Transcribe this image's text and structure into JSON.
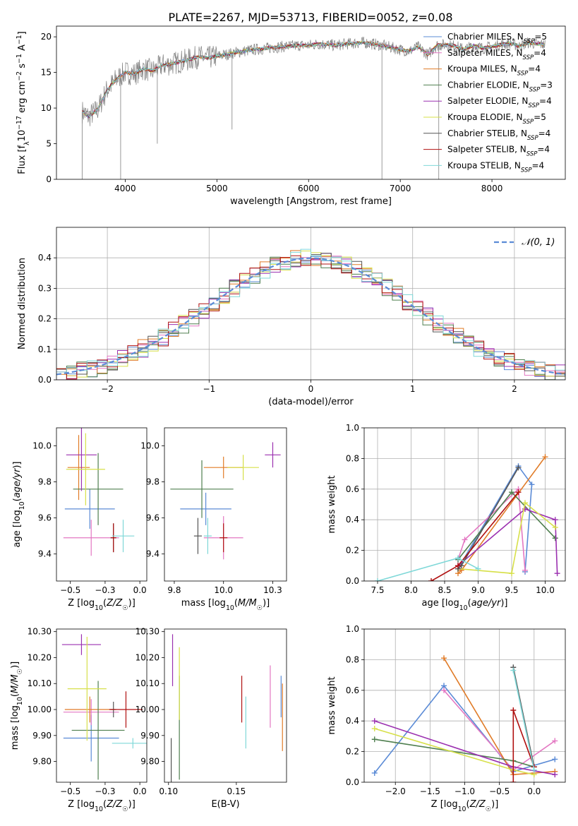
{
  "figure": {
    "title": "PLATE=2267, MJD=53713, FIBERID=0052, z=0.08",
    "colors": {
      "Chabrier MILES": "#5b8bd6",
      "Salpeter MILES": "#e377c2",
      "Kroupa MILES": "#e07b27",
      "Chabrier ELODIE": "#4f7f4f",
      "Salpeter ELODIE": "#9b30b0",
      "Kroupa ELODIE": "#d7e04a",
      "Chabrier STELIB": "#555555",
      "Salpeter STELIB": "#b01010",
      "Kroupa STELIB": "#7fd8d8",
      "data": "#808080"
    }
  },
  "chart_data": [
    {
      "id": "spectrum",
      "type": "line",
      "xlabel": "wavelength [Angstrom, rest frame]",
      "ylabel": "Flux [f_λ10^-17 erg cm^-2 s^-1 A^-1]",
      "xlim": [
        3250,
        8800
      ],
      "ylim": [
        0,
        21.5
      ],
      "xticks": [
        4000,
        5000,
        6000,
        7000,
        8000
      ],
      "yticks": [
        0,
        5,
        10,
        15,
        20
      ],
      "grid": false,
      "legend": "right",
      "legend_entries": [
        {
          "model": "Chabrier MILES",
          "n_ssp": 5
        },
        {
          "model": "Salpeter MILES",
          "n_ssp": 4
        },
        {
          "model": "Kroupa MILES",
          "n_ssp": 4
        },
        {
          "model": "Chabrier ELODIE",
          "n_ssp": 3
        },
        {
          "model": "Salpeter ELODIE",
          "n_ssp": 4
        },
        {
          "model": "Kroupa ELODIE",
          "n_ssp": 5
        },
        {
          "model": "Chabrier STELIB",
          "n_ssp": 4
        },
        {
          "model": "Salpeter STELIB",
          "n_ssp": 4
        },
        {
          "model": "Kroupa STELIB",
          "n_ssp": 4
        }
      ],
      "data_series": {
        "name": "data",
        "x": [
          3530,
          3600,
          3700,
          3800,
          3900,
          4000,
          4100,
          4200,
          4300,
          4400,
          4500,
          4600,
          4700,
          4800,
          4900,
          5000,
          5100,
          5200,
          5300,
          5400,
          5500,
          5600,
          5700,
          5800,
          5900,
          6000,
          6100,
          6200,
          6300,
          6400,
          6500,
          6600,
          6700,
          6800,
          6900,
          7000,
          7100,
          7200,
          7300,
          7400,
          7500,
          7600,
          7700,
          7800,
          7900,
          8000,
          8100,
          8200,
          8300,
          8400,
          8500,
          8580
        ],
        "y": [
          9.5,
          8.8,
          9.8,
          12.5,
          14.0,
          15.0,
          14.8,
          15.5,
          15.2,
          16.0,
          16.2,
          16.5,
          16.8,
          17.2,
          17.0,
          17.3,
          17.5,
          17.8,
          18.0,
          18.2,
          18.3,
          18.5,
          18.6,
          18.7,
          18.8,
          18.8,
          19.0,
          18.9,
          18.8,
          19.0,
          19.1,
          19.2,
          19.0,
          18.8,
          18.5,
          18.2,
          18.0,
          18.6,
          17.5,
          18.8,
          18.9,
          18.7,
          18.2,
          18.8,
          18.4,
          18.6,
          18.9,
          19.1,
          18.7,
          19.2,
          19.0,
          18.9
        ],
        "noise": 1.2
      },
      "dips": [
        {
          "x": 3530,
          "y": 0
        },
        {
          "x": 3950,
          "y": 0
        },
        {
          "x": 4350,
          "y": 5
        },
        {
          "x": 5165,
          "y": 7
        },
        {
          "x": 6800,
          "y": 0
        },
        {
          "x": 7420,
          "y": 0
        }
      ]
    },
    {
      "id": "residuals",
      "type": "histogram",
      "xlabel": "(data-model)/error",
      "ylabel": "Normed distribution",
      "xlim": [
        -2.5,
        2.5
      ],
      "ylim": [
        0,
        0.5
      ],
      "xticks": [
        -2,
        -1,
        0,
        1,
        2
      ],
      "yticks": [
        0.0,
        0.1,
        0.2,
        0.3,
        0.4
      ],
      "grid": true,
      "legend": "top-right",
      "gaussian_label": "𝒩(0, 1)",
      "bin_width": 0.1,
      "bin_start": -2.5,
      "n_bins": 50,
      "jitter": 0.03
    },
    {
      "id": "age-vs-Z",
      "type": "errorbar",
      "xlabel": "Z [log10(Z/Z☉)]",
      "ylabel": "age  [log10(age/yr)]",
      "xlim": [
        -0.6,
        0.05
      ],
      "ylim": [
        9.25,
        10.1
      ],
      "xticks": [
        -0.5,
        -0.25,
        0.0
      ],
      "yticks": [
        9.4,
        9.6,
        9.8,
        10.0
      ],
      "points": [
        {
          "model": "Chabrier MILES",
          "x": -0.36,
          "y": 9.65,
          "xerr": 0.18,
          "yerr": 0.11
        },
        {
          "model": "Salpeter MILES",
          "x": -0.35,
          "y": 9.49,
          "xerr": 0.2,
          "yerr": 0.1
        },
        {
          "model": "Kroupa MILES",
          "x": -0.44,
          "y": 9.88,
          "xerr": 0.08,
          "yerr": 0.18
        },
        {
          "model": "Chabrier ELODIE",
          "x": -0.3,
          "y": 9.76,
          "xerr": 0.18,
          "yerr": 0.2
        },
        {
          "model": "Salpeter ELODIE",
          "x": -0.42,
          "y": 9.95,
          "xerr": 0.11,
          "yerr": 0.2
        },
        {
          "model": "Kroupa ELODIE",
          "x": -0.39,
          "y": 9.87,
          "xerr": 0.14,
          "yerr": 0.2
        },
        {
          "model": "Chabrier STELIB",
          "x": -0.19,
          "y": 9.49,
          "xerr": 0.02,
          "yerr": 0.08
        },
        {
          "model": "Salpeter STELIB",
          "x": -0.19,
          "y": 9.49,
          "xerr": 0.02,
          "yerr": 0.08
        },
        {
          "model": "Kroupa STELIB",
          "x": -0.12,
          "y": 9.5,
          "xerr": 0.08,
          "yerr": 0.09
        }
      ]
    },
    {
      "id": "age-vs-mass",
      "type": "errorbar",
      "xlabel": "mass [log10(M/M☉)]",
      "ylabel": "",
      "xlim": [
        9.7,
        10.32
      ],
      "ylim": [
        9.25,
        10.1
      ],
      "xticks": [
        9.75,
        10.0,
        10.25
      ],
      "yticks": [
        9.4,
        9.6,
        9.8,
        10.0
      ],
      "points": [
        {
          "model": "Chabrier MILES",
          "x": 9.91,
          "y": 9.65,
          "xerr": 0.13,
          "yerr": 0.09
        },
        {
          "model": "Salpeter MILES",
          "x": 10.0,
          "y": 9.49,
          "xerr": 0.1,
          "yerr": 0.12
        },
        {
          "model": "Kroupa MILES",
          "x": 10.0,
          "y": 9.88,
          "xerr": 0.1,
          "yerr": 0.06
        },
        {
          "model": "Chabrier ELODIE",
          "x": 9.89,
          "y": 9.76,
          "xerr": 0.16,
          "yerr": 0.16
        },
        {
          "model": "Salpeter ELODIE",
          "x": 10.25,
          "y": 9.95,
          "xerr": 0.04,
          "yerr": 0.07
        },
        {
          "model": "Kroupa ELODIE",
          "x": 10.1,
          "y": 9.88,
          "xerr": 0.08,
          "yerr": 0.07
        },
        {
          "model": "Chabrier STELIB",
          "x": 9.87,
          "y": 9.5,
          "xerr": 0.02,
          "yerr": 0.1
        },
        {
          "model": "Salpeter STELIB",
          "x": 10.0,
          "y": 9.49,
          "xerr": 0.02,
          "yerr": 0.08
        },
        {
          "model": "Kroupa STELIB",
          "x": 9.92,
          "y": 9.5,
          "xerr": 0.02,
          "yerr": 0.1
        }
      ]
    },
    {
      "id": "weight-vs-age",
      "type": "line",
      "xlabel": "age  [log10(age/yr)]",
      "ylabel": "mass weight",
      "xlim": [
        7.3,
        10.3
      ],
      "ylim": [
        0,
        1
      ],
      "xticks": [
        7.5,
        8.0,
        8.5,
        9.0,
        9.5,
        10.0
      ],
      "yticks": [
        0.0,
        0.2,
        0.4,
        0.6,
        0.8,
        1.0
      ],
      "grid": true,
      "series": [
        {
          "model": "Chabrier MILES",
          "x": [
            8.7,
            9.6,
            9.8,
            9.7
          ],
          "y": [
            0.08,
            0.75,
            0.63,
            0.06
          ]
        },
        {
          "model": "Salpeter MILES",
          "x": [
            8.7,
            8.8,
            9.6,
            9.7
          ],
          "y": [
            0.14,
            0.27,
            0.6,
            0.07
          ]
        },
        {
          "model": "Kroupa MILES",
          "x": [
            8.7,
            8.75,
            10.0
          ],
          "y": [
            0.05,
            0.07,
            0.81
          ]
        },
        {
          "model": "Chabrier ELODIE",
          "x": [
            8.7,
            9.5,
            10.15
          ],
          "y": [
            0.14,
            0.58,
            0.28
          ]
        },
        {
          "model": "Salpeter ELODIE",
          "x": [
            8.7,
            9.7,
            10.15,
            10.18
          ],
          "y": [
            0.1,
            0.47,
            0.4,
            0.05
          ]
        },
        {
          "model": "Kroupa ELODIE",
          "x": [
            8.7,
            9.5,
            9.7,
            10.15
          ],
          "y": [
            0.08,
            0.05,
            0.51,
            0.35
          ]
        },
        {
          "model": "Chabrier STELIB",
          "x": [
            8.7,
            8.75,
            9.6
          ],
          "y": [
            0.08,
            0.1,
            0.74
          ]
        },
        {
          "model": "Salpeter STELIB",
          "x": [
            8.3,
            8.7,
            9.6
          ],
          "y": [
            0.0,
            0.1,
            0.58
          ]
        },
        {
          "model": "Kroupa STELIB",
          "x": [
            7.5,
            8.7,
            9.0
          ],
          "y": [
            0.0,
            0.15,
            0.08
          ]
        }
      ]
    },
    {
      "id": "mass-vs-Z",
      "type": "errorbar",
      "xlabel": "Z [log10(Z/Z☉)]",
      "ylabel": "mass [log10(M/M☉)]",
      "xlim": [
        -0.6,
        0.05
      ],
      "ylim": [
        9.72,
        10.31
      ],
      "xticks": [
        -0.5,
        -0.25,
        0.0
      ],
      "yticks": [
        9.8,
        9.9,
        10.0,
        10.1,
        10.2,
        10.3
      ],
      "points": [
        {
          "model": "Chabrier MILES",
          "x": -0.35,
          "y": 9.89,
          "xerr": 0.2,
          "yerr": 0.09
        },
        {
          "model": "Salpeter MILES",
          "x": -0.35,
          "y": 9.99,
          "xerr": 0.2,
          "yerr": 0.05
        },
        {
          "model": "Kroupa MILES",
          "x": -0.36,
          "y": 10.0,
          "xerr": 0.18,
          "yerr": 0.05
        },
        {
          "model": "Chabrier ELODIE",
          "x": -0.3,
          "y": 9.92,
          "xerr": 0.19,
          "yerr": 0.19
        },
        {
          "model": "Salpeter ELODIE",
          "x": -0.42,
          "y": 10.25,
          "xerr": 0.14,
          "yerr": 0.04
        },
        {
          "model": "Kroupa ELODIE",
          "x": -0.38,
          "y": 10.08,
          "xerr": 0.14,
          "yerr": 0.2
        },
        {
          "model": "Chabrier STELIB",
          "x": -0.19,
          "y": 10.0,
          "xerr": 0.02,
          "yerr": 0.03
        },
        {
          "model": "Salpeter STELIB",
          "x": -0.1,
          "y": 10.0,
          "xerr": 0.12,
          "yerr": 0.07
        },
        {
          "model": "Kroupa STELIB",
          "x": -0.05,
          "y": 9.87,
          "xerr": 0.15,
          "yerr": 0.02
        }
      ]
    },
    {
      "id": "mass-vs-ebv",
      "type": "errorbar",
      "xlabel": "E(B-V)",
      "ylabel": "",
      "xlim": [
        0.097,
        0.187
      ],
      "ylim": [
        9.72,
        10.31
      ],
      "xticks": [
        0.1,
        0.15
      ],
      "yticks": [
        9.8,
        9.9,
        10.0,
        10.1,
        10.2,
        10.3
      ],
      "points": [
        {
          "model": "Chabrier MILES",
          "x": 0.183,
          "y": 10.05,
          "xerr": 0,
          "yerr": 0.08
        },
        {
          "model": "Salpeter MILES",
          "x": 0.175,
          "y": 10.05,
          "xerr": 0,
          "yerr": 0.12
        },
        {
          "model": "Kroupa MILES",
          "x": 0.184,
          "y": 9.97,
          "xerr": 0,
          "yerr": 0.13
        },
        {
          "model": "Chabrier ELODIE",
          "x": 0.108,
          "y": 9.93,
          "xerr": 0,
          "yerr": 0.2
        },
        {
          "model": "Salpeter ELODIE",
          "x": 0.103,
          "y": 10.19,
          "xerr": 0,
          "yerr": 0.1
        },
        {
          "model": "Kroupa ELODIE",
          "x": 0.108,
          "y": 10.1,
          "xerr": 0,
          "yerr": 0.14
        },
        {
          "model": "Chabrier STELIB",
          "x": 0.102,
          "y": 9.8,
          "xerr": 0,
          "yerr": 0.09
        },
        {
          "model": "Salpeter STELIB",
          "x": 0.154,
          "y": 10.04,
          "xerr": 0,
          "yerr": 0.09
        },
        {
          "model": "Kroupa STELIB",
          "x": 0.157,
          "y": 9.95,
          "xerr": 0,
          "yerr": 0.1
        }
      ]
    },
    {
      "id": "weight-vs-Z",
      "type": "line",
      "xlabel": "Z [log10(Z/Z☉)]",
      "ylabel": "mass weight",
      "xlim": [
        -2.45,
        0.45
      ],
      "ylim": [
        0,
        1
      ],
      "xticks": [
        -2.0,
        -1.5,
        -1.0,
        -0.5,
        0.0
      ],
      "yticks": [
        0.0,
        0.2,
        0.4,
        0.6,
        0.8,
        1.0
      ],
      "grid": true,
      "series": [
        {
          "model": "Chabrier MILES",
          "x": [
            -2.3,
            -1.3,
            -0.3,
            0.3
          ],
          "y": [
            0.06,
            0.63,
            0.07,
            0.15
          ]
        },
        {
          "model": "Salpeter MILES",
          "x": [
            -1.3,
            -0.3,
            0.3
          ],
          "y": [
            0.6,
            0.08,
            0.27
          ]
        },
        {
          "model": "Kroupa MILES",
          "x": [
            -1.3,
            -0.3,
            0.0,
            0.3
          ],
          "y": [
            0.81,
            0.05,
            0.06,
            0.07
          ]
        },
        {
          "model": "Chabrier ELODIE",
          "x": [
            -2.3,
            -0.3,
            0.0
          ],
          "y": [
            0.28,
            0.14,
            0.1
          ]
        },
        {
          "model": "Salpeter ELODIE",
          "x": [
            -2.3,
            -0.3,
            0.3
          ],
          "y": [
            0.4,
            0.1,
            0.05
          ]
        },
        {
          "model": "Kroupa ELODIE",
          "x": [
            -2.3,
            -0.3,
            0.0
          ],
          "y": [
            0.35,
            0.08,
            0.05
          ]
        },
        {
          "model": "Chabrier STELIB",
          "x": [
            -0.3,
            0.0
          ],
          "y": [
            0.75,
            0.1
          ]
        },
        {
          "model": "Salpeter STELIB",
          "x": [
            -0.3,
            -0.3,
            0.0
          ],
          "y": [
            0.0,
            0.47,
            0.1
          ]
        },
        {
          "model": "Kroupa STELIB",
          "x": [
            -0.3,
            0.0
          ],
          "y": [
            0.73,
            0.08
          ]
        }
      ]
    }
  ]
}
